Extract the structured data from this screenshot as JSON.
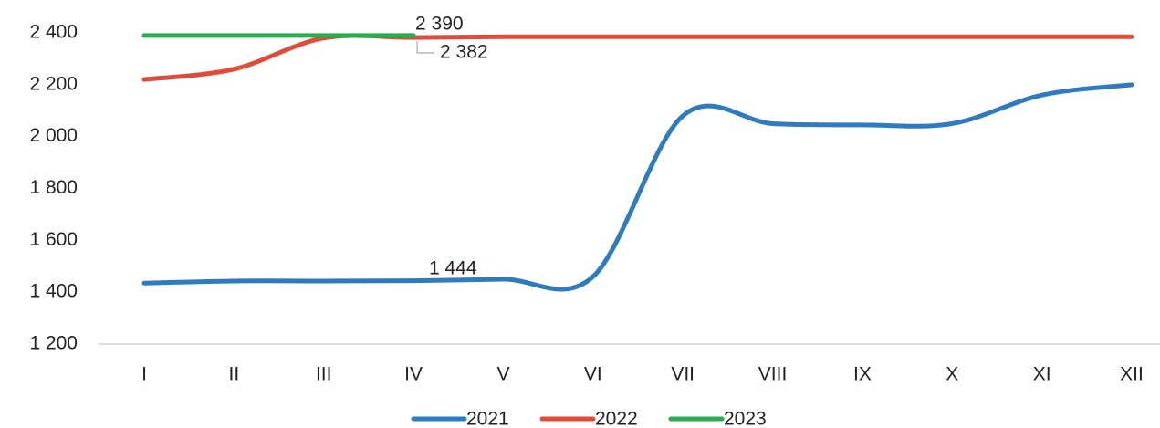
{
  "chart_data": {
    "type": "line",
    "categories": [
      "I",
      "II",
      "III",
      "IV",
      "V",
      "VI",
      "VII",
      "VIII",
      "IX",
      "X",
      "XI",
      "XII"
    ],
    "series": [
      {
        "name": "2021",
        "color": "#2e7bbf",
        "values": [
          1435,
          1443,
          1443,
          1444,
          1450,
          1460,
          2080,
          2050,
          2045,
          2050,
          2160,
          2200
        ],
        "value_labels": [
          null,
          null,
          null,
          "1 444",
          null,
          null,
          null,
          null,
          null,
          null,
          null,
          null
        ]
      },
      {
        "name": "2022",
        "color": "#e04b3a",
        "values": [
          2220,
          2260,
          2380,
          2382,
          2385,
          2385,
          2385,
          2385,
          2385,
          2385,
          2385,
          2385
        ],
        "value_labels": [
          null,
          null,
          null,
          "2 382",
          null,
          null,
          null,
          null,
          null,
          null,
          null,
          null
        ]
      },
      {
        "name": "2023",
        "color": "#2aab4f",
        "values": [
          2390,
          2390,
          2390,
          2390,
          null,
          null,
          null,
          null,
          null,
          null,
          null,
          null
        ],
        "value_labels": [
          null,
          null,
          null,
          "2 390",
          null,
          null,
          null,
          null,
          null,
          null,
          null,
          null
        ]
      }
    ],
    "ylim": [
      1200,
      2400
    ],
    "yticks": [
      {
        "value": 1200,
        "label": "1 200"
      },
      {
        "value": 1400,
        "label": "1 400"
      },
      {
        "value": 1600,
        "label": "1 600"
      },
      {
        "value": 1800,
        "label": "1 800"
      },
      {
        "value": 2000,
        "label": "2 000"
      },
      {
        "value": 2200,
        "label": "2 200"
      },
      {
        "value": 2400,
        "label": "2 400"
      }
    ],
    "legend": "bottom"
  }
}
